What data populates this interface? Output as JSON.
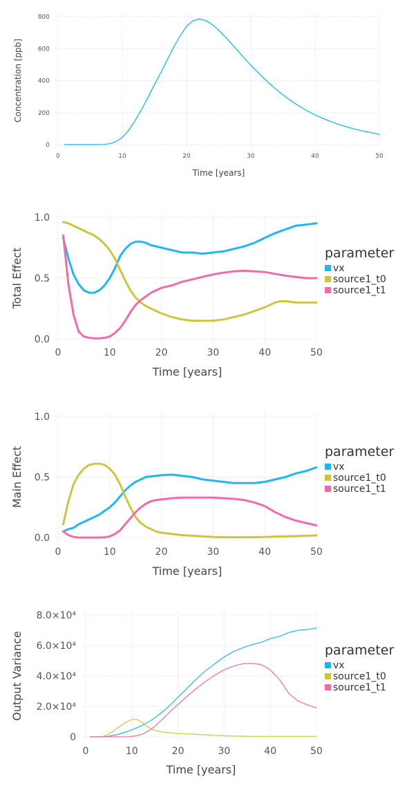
{
  "chart_data": [
    {
      "type": "line",
      "xlabel": "Time [years]",
      "ylabel": "Concentration [ppb]",
      "xlim": [
        0,
        50
      ],
      "ylim": [
        0,
        800
      ],
      "xticks": [
        "0",
        "10",
        "20",
        "30",
        "40",
        "50"
      ],
      "yticks": [
        "0",
        "200",
        "400",
        "600",
        "800"
      ],
      "grid": true,
      "series": [
        {
          "color": "#00B7E6",
          "x": [
            1,
            2,
            3,
            4,
            5,
            6,
            7,
            8,
            9,
            10,
            11,
            12,
            13,
            14,
            15,
            16,
            17,
            18,
            19,
            20,
            21,
            22,
            23,
            24,
            25,
            26,
            27,
            28,
            29,
            30,
            31,
            32,
            33,
            34,
            35,
            36,
            37,
            38,
            39,
            40,
            41,
            42,
            43,
            44,
            45,
            46,
            47,
            48,
            49,
            50
          ],
          "y": [
            0,
            0,
            0,
            0,
            0,
            0,
            1,
            5,
            18,
            45,
            90,
            150,
            220,
            295,
            375,
            450,
            530,
            610,
            680,
            740,
            775,
            785,
            775,
            750,
            715,
            675,
            630,
            585,
            540,
            495,
            455,
            415,
            378,
            343,
            311,
            281,
            254,
            229,
            206,
            186,
            168,
            151,
            136,
            122,
            110,
            99,
            89,
            80,
            72,
            64
          ]
        }
      ]
    },
    {
      "type": "line",
      "xlabel": "Time [years]",
      "ylabel": "Total Effect",
      "xlim": [
        0,
        50
      ],
      "ylim": [
        0,
        1.0
      ],
      "xticks": [
        "0",
        "10",
        "20",
        "30",
        "40",
        "50"
      ],
      "yticks": [
        "0.0",
        "0.5",
        "1.0"
      ],
      "grid": true,
      "legend": {
        "title": "parameter",
        "position": "right"
      },
      "series": [
        {
          "name": "vx",
          "color": "#1FB7EE",
          "x": [
            1,
            2,
            3,
            4,
            5,
            6,
            7,
            8,
            9,
            10,
            11,
            12,
            13,
            14,
            15,
            16,
            17,
            18,
            19,
            20,
            22,
            24,
            26,
            28,
            30,
            32,
            34,
            36,
            38,
            40,
            42,
            44,
            46,
            48,
            50
          ],
          "y": [
            0.83,
            0.66,
            0.53,
            0.45,
            0.4,
            0.38,
            0.38,
            0.4,
            0.44,
            0.5,
            0.58,
            0.68,
            0.74,
            0.78,
            0.8,
            0.8,
            0.79,
            0.77,
            0.76,
            0.75,
            0.73,
            0.71,
            0.71,
            0.7,
            0.71,
            0.72,
            0.74,
            0.76,
            0.79,
            0.83,
            0.87,
            0.9,
            0.93,
            0.94,
            0.95
          ]
        },
        {
          "name": "source1_t0",
          "color": "#CBC73C",
          "x": [
            1,
            2,
            3,
            4,
            5,
            6,
            7,
            8,
            9,
            10,
            11,
            12,
            13,
            14,
            15,
            16,
            17,
            18,
            19,
            20,
            22,
            24,
            26,
            28,
            30,
            32,
            34,
            36,
            38,
            40,
            42,
            43,
            44,
            46,
            48,
            50
          ],
          "y": [
            0.96,
            0.95,
            0.93,
            0.91,
            0.89,
            0.87,
            0.85,
            0.82,
            0.78,
            0.73,
            0.66,
            0.57,
            0.48,
            0.4,
            0.34,
            0.3,
            0.27,
            0.25,
            0.23,
            0.21,
            0.18,
            0.16,
            0.15,
            0.15,
            0.15,
            0.16,
            0.18,
            0.2,
            0.23,
            0.26,
            0.3,
            0.31,
            0.31,
            0.3,
            0.3,
            0.3
          ]
        },
        {
          "name": "source1_t1",
          "color": "#F26BA6",
          "x": [
            1,
            2,
            3,
            4,
            5,
            6,
            7,
            8,
            9,
            10,
            11,
            12,
            13,
            14,
            15,
            16,
            17,
            18,
            19,
            20,
            22,
            24,
            26,
            28,
            30,
            32,
            34,
            36,
            38,
            40,
            42,
            44,
            46,
            48,
            50
          ],
          "y": [
            0.85,
            0.45,
            0.2,
            0.06,
            0.02,
            0.01,
            0.005,
            0.005,
            0.01,
            0.02,
            0.05,
            0.09,
            0.15,
            0.22,
            0.28,
            0.32,
            0.35,
            0.38,
            0.4,
            0.42,
            0.44,
            0.47,
            0.49,
            0.51,
            0.53,
            0.545,
            0.555,
            0.56,
            0.555,
            0.55,
            0.535,
            0.52,
            0.51,
            0.5,
            0.5
          ]
        }
      ]
    },
    {
      "type": "line",
      "xlabel": "Time [years]",
      "ylabel": "Main Effect",
      "xlim": [
        0,
        50
      ],
      "ylim": [
        0,
        1.0
      ],
      "xticks": [
        "0",
        "10",
        "20",
        "30",
        "40",
        "50"
      ],
      "yticks": [
        "0.0",
        "0.5",
        "1.0"
      ],
      "grid": true,
      "legend": {
        "title": "parameter",
        "position": "right"
      },
      "series": [
        {
          "name": "vx",
          "color": "#1FB7EE",
          "x": [
            1,
            2,
            3,
            4,
            5,
            6,
            7,
            8,
            9,
            10,
            11,
            12,
            13,
            14,
            15,
            16,
            17,
            18,
            19,
            20,
            22,
            24,
            26,
            28,
            30,
            32,
            34,
            36,
            38,
            40,
            42,
            44,
            46,
            48,
            50
          ],
          "y": [
            0.05,
            0.07,
            0.08,
            0.11,
            0.13,
            0.15,
            0.17,
            0.19,
            0.22,
            0.25,
            0.29,
            0.34,
            0.39,
            0.43,
            0.46,
            0.48,
            0.5,
            0.505,
            0.51,
            0.515,
            0.52,
            0.51,
            0.5,
            0.48,
            0.47,
            0.46,
            0.45,
            0.45,
            0.45,
            0.46,
            0.48,
            0.5,
            0.53,
            0.55,
            0.58
          ]
        },
        {
          "name": "source1_t0",
          "color": "#CBC73C",
          "x": [
            1,
            2,
            3,
            4,
            5,
            6,
            7,
            8,
            9,
            10,
            11,
            12,
            13,
            14,
            15,
            16,
            17,
            18,
            19,
            20,
            22,
            24,
            26,
            28,
            30,
            32,
            34,
            36,
            38,
            40,
            42,
            44,
            46,
            48,
            50
          ],
          "y": [
            0.11,
            0.3,
            0.44,
            0.52,
            0.57,
            0.6,
            0.61,
            0.61,
            0.6,
            0.57,
            0.52,
            0.44,
            0.34,
            0.25,
            0.17,
            0.12,
            0.09,
            0.07,
            0.05,
            0.04,
            0.03,
            0.02,
            0.015,
            0.01,
            0.005,
            0.003,
            0.002,
            0.002,
            0.003,
            0.005,
            0.008,
            0.01,
            0.012,
            0.015,
            0.018
          ]
        },
        {
          "name": "source1_t1",
          "color": "#F26BA6",
          "x": [
            1,
            2,
            3,
            4,
            5,
            6,
            7,
            8,
            9,
            10,
            11,
            12,
            13,
            14,
            15,
            16,
            17,
            18,
            19,
            20,
            22,
            24,
            26,
            28,
            30,
            32,
            34,
            36,
            38,
            40,
            42,
            44,
            46,
            48,
            50
          ],
          "y": [
            0.05,
            0.02,
            0.005,
            0.0,
            0.0,
            0.0,
            0.0,
            0.0,
            0.002,
            0.01,
            0.03,
            0.06,
            0.11,
            0.16,
            0.21,
            0.25,
            0.28,
            0.3,
            0.31,
            0.315,
            0.325,
            0.33,
            0.33,
            0.33,
            0.33,
            0.325,
            0.32,
            0.31,
            0.29,
            0.26,
            0.21,
            0.17,
            0.14,
            0.12,
            0.1
          ]
        }
      ]
    },
    {
      "type": "line",
      "xlabel": "Time [years]",
      "ylabel": "Output Variance",
      "xlim": [
        0,
        50
      ],
      "ylim": [
        0,
        80000
      ],
      "xticks": [
        "0",
        "10",
        "20",
        "30",
        "40",
        "50"
      ],
      "yticks": [
        "0",
        "2.0×10⁴",
        "4.0×10⁴",
        "6.0×10⁴",
        "8.0×10⁴"
      ],
      "grid": true,
      "legend": {
        "title": "parameter",
        "position": "right"
      },
      "series": [
        {
          "name": "vx",
          "color": "#1FB7EE",
          "x": [
            1,
            2,
            3,
            4,
            5,
            6,
            7,
            8,
            9,
            10,
            11,
            12,
            13,
            14,
            15,
            16,
            17,
            18,
            19,
            20,
            22,
            24,
            26,
            28,
            30,
            32,
            34,
            36,
            38,
            40,
            42,
            44,
            46,
            48,
            50
          ],
          "y": [
            0,
            0,
            0,
            100,
            400,
            900,
            1600,
            2500,
            3500,
            4600,
            5800,
            7200,
            8800,
            10500,
            12500,
            14800,
            17300,
            20000,
            23000,
            26000,
            32000,
            38000,
            43500,
            48000,
            52500,
            56000,
            58500,
            60500,
            62000,
            64500,
            66000,
            68500,
            70000,
            70500,
            71500
          ]
        },
        {
          "name": "source1_t0",
          "color": "#CBC73C",
          "x": [
            1,
            2,
            3,
            4,
            5,
            6,
            7,
            8,
            9,
            10,
            11,
            12,
            13,
            14,
            15,
            16,
            17,
            18,
            19,
            20,
            22,
            24,
            26,
            28,
            30,
            32,
            34,
            36,
            38,
            40,
            42,
            44,
            46,
            48,
            50
          ],
          "y": [
            0,
            0,
            0,
            500,
            1800,
            3800,
            6000,
            8200,
            10000,
            11300,
            11500,
            10000,
            7500,
            5500,
            4200,
            3500,
            3000,
            2700,
            2400,
            2200,
            1900,
            1600,
            1300,
            1000,
            700,
            500,
            400,
            300,
            300,
            300,
            300,
            300,
            300,
            300,
            300
          ]
        },
        {
          "name": "source1_t1",
          "color": "#F26BA6",
          "x": [
            1,
            2,
            3,
            4,
            5,
            6,
            7,
            8,
            9,
            10,
            11,
            12,
            13,
            14,
            15,
            16,
            17,
            18,
            19,
            20,
            22,
            24,
            26,
            28,
            30,
            32,
            34,
            36,
            38,
            40,
            42,
            44,
            46,
            48,
            50
          ],
          "y": [
            0,
            0,
            0,
            0,
            0,
            0,
            0,
            0,
            100,
            300,
            700,
            1500,
            2800,
            4600,
            7000,
            9800,
            12700,
            15700,
            18500,
            21300,
            26800,
            31800,
            36500,
            40500,
            44000,
            46500,
            48000,
            48200,
            47500,
            44000,
            37500,
            28500,
            23500,
            21000,
            19000
          ]
        }
      ]
    }
  ]
}
